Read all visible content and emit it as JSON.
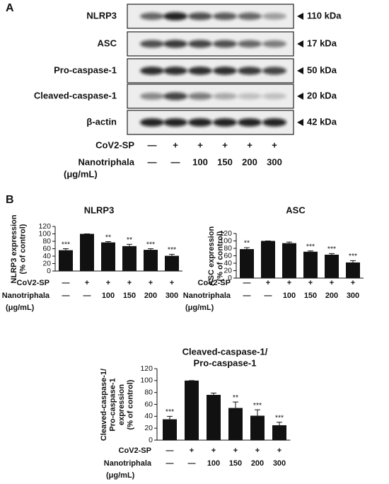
{
  "blot": {
    "label": "A",
    "rows": [
      {
        "name": "NLRP3",
        "size": "110 kDa"
      },
      {
        "name": "ASC",
        "size": "17 kDa"
      },
      {
        "name": "Pro-caspase-1",
        "size": "50 kDa"
      },
      {
        "name": "Cleaved-caspase-1",
        "size": "20 kDa"
      },
      {
        "name": "β-actin",
        "size": "42 kDa"
      }
    ],
    "treatments": [
      {
        "name": "CoV2-SP",
        "labels": [
          "—",
          "+",
          "+",
          "+",
          "+",
          "+"
        ]
      },
      {
        "name": "Nanotriphala",
        "unit": "(μg/mL)",
        "labels": [
          "—",
          "—",
          "100",
          "150",
          "200",
          "300"
        ]
      }
    ]
  },
  "panel_b_label": "B",
  "chart_data": [
    {
      "type": "bar",
      "title": [
        "NLRP3"
      ],
      "y_label": [
        "NLRP3 expression",
        "(% of control)"
      ],
      "values": [
        56,
        100,
        77,
        67,
        57,
        41
      ],
      "errors": [
        4,
        0,
        2,
        5,
        3,
        4
      ],
      "significance": [
        "***",
        null,
        "**",
        "**",
        "***",
        "***"
      ],
      "color": "#111111",
      "ylim": [
        0,
        120
      ],
      "yticks": [
        0,
        20,
        40,
        60,
        80,
        100,
        120
      ],
      "treatments": [
        {
          "name": "CoV2-SP",
          "labels": [
            "—",
            "+",
            "+",
            "+",
            "+",
            "+"
          ]
        },
        {
          "name": "Nanotriphala",
          "unit": "(μg/mL)",
          "labels": [
            "—",
            "—",
            "100",
            "150",
            "200",
            "300"
          ]
        }
      ]
    },
    {
      "type": "bar",
      "title": [
        "ASC"
      ],
      "y_label": [
        "ASC expression",
        "(% of control)"
      ],
      "values": [
        78,
        100,
        94,
        71,
        63,
        42
      ],
      "errors": [
        4,
        0,
        3,
        2,
        3,
        5
      ],
      "significance": [
        "**",
        null,
        null,
        "***",
        "***",
        "***"
      ],
      "color": "#111111",
      "ylim": [
        0,
        120
      ],
      "yticks": [
        0,
        20,
        40,
        60,
        80,
        100,
        120
      ],
      "treatments": [
        {
          "name": "CoV2-SP",
          "labels": [
            "—",
            "+",
            "+",
            "+",
            "+",
            "+"
          ]
        },
        {
          "name": "Nanotriphala",
          "unit": "(μg/mL)",
          "labels": [
            "—",
            "—",
            "100",
            "150",
            "200",
            "300"
          ]
        }
      ]
    },
    {
      "type": "bar",
      "title": [
        "Cleaved-caspase-1/",
        "Pro-caspase-1"
      ],
      "y_label": [
        "Cleaved-caspase-1/",
        "Pro-caspase-1",
        "expression",
        "(% of control)"
      ],
      "values": [
        35,
        100,
        76,
        54,
        41,
        25
      ],
      "errors": [
        5,
        0,
        3,
        10,
        10,
        5
      ],
      "significance": [
        "***",
        null,
        null,
        "**",
        "***",
        "***"
      ],
      "color": "#111111",
      "ylim": [
        0,
        120
      ],
      "yticks": [
        0,
        20,
        40,
        60,
        80,
        100,
        120
      ],
      "treatments": [
        {
          "name": "CoV2-SP",
          "labels": [
            "—",
            "+",
            "+",
            "+",
            "+",
            "+"
          ]
        },
        {
          "name": "Nanotriphala",
          "unit": "(μg/mL)",
          "labels": [
            "—",
            "—",
            "100",
            "150",
            "200",
            "300"
          ]
        }
      ]
    }
  ]
}
